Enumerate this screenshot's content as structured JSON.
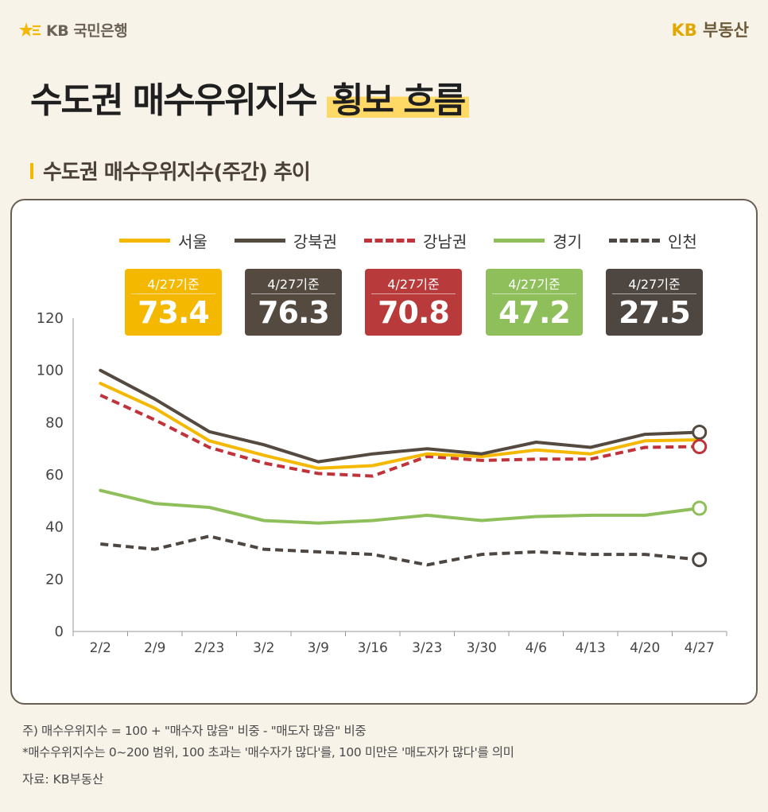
{
  "header": {
    "bank_logo_text": "KB 국민은행",
    "realty_brand_prefix": "KB",
    "realty_brand_word": "부동산"
  },
  "title": {
    "main": "수도권 매수우위지수",
    "highlight": "횡보 흐름"
  },
  "subtitle": "수도권 매수우위지수(주간) 추이",
  "colors": {
    "seoul": "#f5b800",
    "gangbuk": "#554a40",
    "gangnam": "#c0333a",
    "gyeonggi": "#8fbf5a",
    "incheon": "#4e4640",
    "title_highlight": "#ffd966"
  },
  "badges": [
    {
      "date": "4/27기준",
      "value": "73.4",
      "series": "서울"
    },
    {
      "date": "4/27기준",
      "value": "76.3",
      "series": "강북권"
    },
    {
      "date": "4/27기준",
      "value": "70.8",
      "series": "강남권"
    },
    {
      "date": "4/27기준",
      "value": "47.2",
      "series": "경기"
    },
    {
      "date": "4/27기준",
      "value": "27.5",
      "series": "인천"
    }
  ],
  "chart_data": {
    "type": "line",
    "title": "수도권 매수우위지수(주간) 추이",
    "xlabel": "",
    "ylabel": "",
    "categories": [
      "2/2",
      "2/9",
      "2/23",
      "3/2",
      "3/9",
      "3/16",
      "3/23",
      "3/30",
      "4/6",
      "4/13",
      "4/20",
      "4/27"
    ],
    "y_ticks": [
      "0",
      "20",
      "40",
      "60",
      "80",
      "100",
      "120"
    ],
    "ylim": [
      0,
      120
    ],
    "legend_position": "top",
    "grid": false,
    "series": [
      {
        "name": "서울",
        "style": "solid",
        "values": [
          95,
          85.5,
          73,
          67.5,
          62.5,
          63.5,
          68,
          67,
          69.5,
          68,
          73,
          73.4
        ]
      },
      {
        "name": "강북권",
        "style": "solid",
        "values": [
          100,
          89,
          76.5,
          71.5,
          65,
          68,
          70,
          68,
          72.5,
          70.5,
          75.5,
          76.3
        ]
      },
      {
        "name": "강남권",
        "style": "dashed",
        "values": [
          90.5,
          81,
          70.5,
          64.5,
          60.5,
          59.5,
          67,
          65.5,
          66,
          66,
          70.5,
          70.8
        ]
      },
      {
        "name": "경기",
        "style": "solid",
        "values": [
          54,
          49,
          47.5,
          42.5,
          41.5,
          42.5,
          44.5,
          42.5,
          44,
          44.5,
          44.5,
          47.2
        ]
      },
      {
        "name": "인천",
        "style": "dashed",
        "values": [
          33.5,
          31.5,
          36.5,
          31.5,
          30.5,
          29.5,
          25.5,
          29.5,
          30.5,
          29.5,
          29.5,
          27.5
        ]
      }
    ]
  },
  "notes": {
    "line1": "주) 매수우위지수 = 100 + \"매수자 많음\" 비중 - \"매도자 많음\" 비중",
    "line2": "*매수우위지수는 0~200 범위, 100 초과는 '매수자가 많다'를, 100 미만은 '매도자가 많다'를 의미",
    "source": "자료: KB부동산"
  }
}
